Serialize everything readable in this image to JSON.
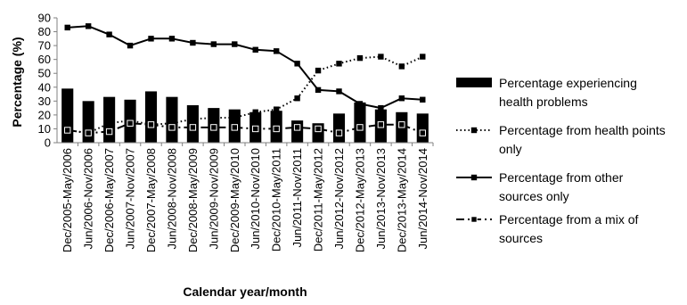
{
  "chart_data": {
    "type": "bar",
    "xlabel": "Calendar year/month",
    "ylabel": "Percentage (%)",
    "ylim": [
      0,
      90
    ],
    "yticks": [
      0,
      10,
      20,
      30,
      40,
      50,
      60,
      70,
      80,
      90
    ],
    "grid": false,
    "legend_position": "right",
    "categories": [
      "Dec/2005-May/2006",
      "Jun/2006-Nov/2006",
      "Dec/2006-May/2007",
      "Jun/2007-Nov/2007",
      "Dec/2007-May/2008",
      "Jun/2008-Nov/2008",
      "Dec/2008-May/2009",
      "Jun/2009-Nov/2009",
      "Dec/2009-May/2010",
      "Jun/2010-Nov/2010",
      "Dec/2010-May/2011",
      "Jun/2011-Nov/2011",
      "Dec/2011-May/2012",
      "Jun/2012-Nov/2012",
      "Dec/2012-May/2013",
      "Jun/2013-Nov/2013",
      "Dec/2013-May/2014",
      "Jun/2014-Nov/2014"
    ],
    "series": [
      {
        "name": "Percentage experiencing health problems",
        "kind": "bar",
        "values": [
          39,
          30,
          33,
          31,
          37,
          33,
          27,
          25,
          24,
          22,
          23,
          16,
          14,
          21,
          29,
          24,
          22,
          21
        ]
      },
      {
        "name": "Percentage from health points only",
        "kind": "line-dotted",
        "values": [
          9,
          7,
          14,
          16,
          13,
          14,
          17,
          18,
          18,
          22,
          24,
          32,
          52,
          57,
          61,
          62,
          55,
          62
        ]
      },
      {
        "name": "Percentage from other sources only",
        "kind": "line-solid",
        "values": [
          83,
          84,
          78,
          70,
          75,
          75,
          72,
          71,
          71,
          67,
          66,
          57,
          38,
          37,
          28,
          25,
          32,
          31
        ]
      },
      {
        "name": "Percentage from a mix of sources",
        "kind": "line-dashdot",
        "values": [
          9,
          7,
          8,
          14,
          13,
          11,
          11,
          11,
          11,
          10,
          10,
          11,
          10,
          7,
          11,
          13,
          13,
          7
        ]
      }
    ],
    "legend": [
      {
        "lines": [
          "Percentage experiencing",
          "health problems"
        ]
      },
      {
        "lines": [
          "Percentage from health points",
          "only"
        ]
      },
      {
        "lines": [
          "Percentage from other",
          "sources only"
        ]
      },
      {
        "lines": [
          "Percentage from a mix of",
          "sources"
        ]
      }
    ]
  }
}
